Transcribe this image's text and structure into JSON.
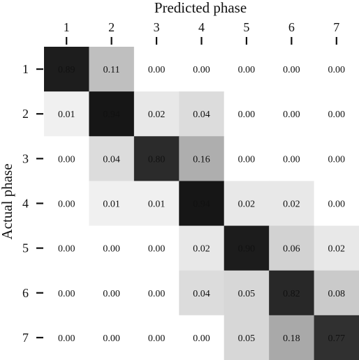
{
  "chart_data": {
    "type": "heatmap",
    "xlabel": "Predicted phase",
    "ylabel": "Actual phase",
    "x_categories": [
      "1",
      "2",
      "3",
      "4",
      "5",
      "6",
      "7"
    ],
    "y_categories": [
      "1",
      "2",
      "3",
      "4",
      "5",
      "6",
      "7"
    ],
    "values": [
      [
        "0.89",
        "0.11",
        "0.00",
        "0.00",
        "0.00",
        "0.00",
        "0.00"
      ],
      [
        "0.01",
        "0.94",
        "0.02",
        "0.04",
        "0.00",
        "0.00",
        "0.00"
      ],
      [
        "0.00",
        "0.04",
        "0.80",
        "0.16",
        "0.00",
        "0.00",
        "0.00"
      ],
      [
        "0.00",
        "0.01",
        "0.01",
        "0.94",
        "0.02",
        "0.02",
        "0.00"
      ],
      [
        "0.00",
        "0.00",
        "0.00",
        "0.02",
        "0.90",
        "0.06",
        "0.02"
      ],
      [
        "0.00",
        "0.00",
        "0.00",
        "0.04",
        "0.05",
        "0.82",
        "0.08"
      ],
      [
        "0.00",
        "0.00",
        "0.00",
        "0.00",
        "0.05",
        "0.18",
        "0.77"
      ]
    ],
    "x_axis_position": "top",
    "colormap": "greys",
    "value_range": [
      0,
      1
    ]
  }
}
